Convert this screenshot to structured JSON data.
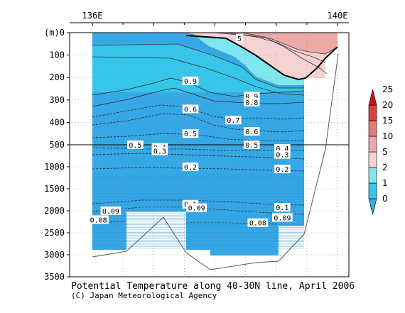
{
  "chart_data": {
    "type": "contour-section",
    "title": "Potential Temperature along 40-30N line, April 2006",
    "credit": "(C) Japan Meteorological Agency",
    "x_tick_labels": [
      "136E",
      "140E"
    ],
    "x_range": [
      136,
      140
    ],
    "y_unit_label": "(m)",
    "y_tick_labels": [
      "0",
      "100",
      "200",
      "300",
      "400",
      "500",
      "1000",
      "1500",
      "2000",
      "2500",
      "3000",
      "3500"
    ],
    "y_upper_range_m": [
      0,
      500
    ],
    "y_lower_range_m": [
      500,
      3500
    ],
    "colorbar": {
      "labels": [
        "0",
        "1",
        "2",
        "5",
        "10",
        "15",
        "20",
        "25"
      ],
      "colors": [
        "#36a8e6",
        "#35c6ea",
        "#7fe8ee",
        "#f6d2d2",
        "#efa8a8",
        "#e67a7a",
        "#db3f3f",
        "#cd1414"
      ]
    },
    "contour_labels": [
      {
        "text": "5",
        "depth_m": 25,
        "lon": 138.4
      },
      {
        "text": "0.9",
        "depth_m": 215,
        "lon": 137.6
      },
      {
        "text": "0.9",
        "depth_m": 283,
        "lon": 138.6
      },
      {
        "text": "0.8",
        "depth_m": 310,
        "lon": 138.6
      },
      {
        "text": "0.7",
        "depth_m": 390,
        "lon": 138.3
      },
      {
        "text": "0.6",
        "depth_m": 340,
        "lon": 137.6
      },
      {
        "text": "0.6",
        "depth_m": 440,
        "lon": 138.6
      },
      {
        "text": "0.5",
        "depth_m": 450,
        "lon": 137.6
      },
      {
        "text": "0.5",
        "depth_m": 500,
        "lon": 136.7
      },
      {
        "text": "0.5",
        "depth_m": 500,
        "lon": 138.6
      },
      {
        "text": "0.4",
        "depth_m": 560,
        "lon": 137.1
      },
      {
        "text": "0.4",
        "depth_m": 580,
        "lon": 139.1
      },
      {
        "text": "0.3",
        "depth_m": 640,
        "lon": 137.1
      },
      {
        "text": "0.3",
        "depth_m": 720,
        "lon": 139.1
      },
      {
        "text": "0.2",
        "depth_m": 1000,
        "lon": 137.6
      },
      {
        "text": "0.2",
        "depth_m": 1050,
        "lon": 139.1
      },
      {
        "text": "0.1",
        "depth_m": 1850,
        "lon": 137.6
      },
      {
        "text": "0.09",
        "depth_m": 1930,
        "lon": 137.7
      },
      {
        "text": "0.1",
        "depth_m": 1920,
        "lon": 139.1
      },
      {
        "text": "0.09",
        "depth_m": 2000,
        "lon": 136.3
      },
      {
        "text": "0.08",
        "depth_m": 2200,
        "lon": 136.1
      },
      {
        "text": "0.08",
        "depth_m": 2270,
        "lon": 138.7
      },
      {
        "text": "0.09",
        "depth_m": 2150,
        "lon": 139.1
      }
    ]
  }
}
